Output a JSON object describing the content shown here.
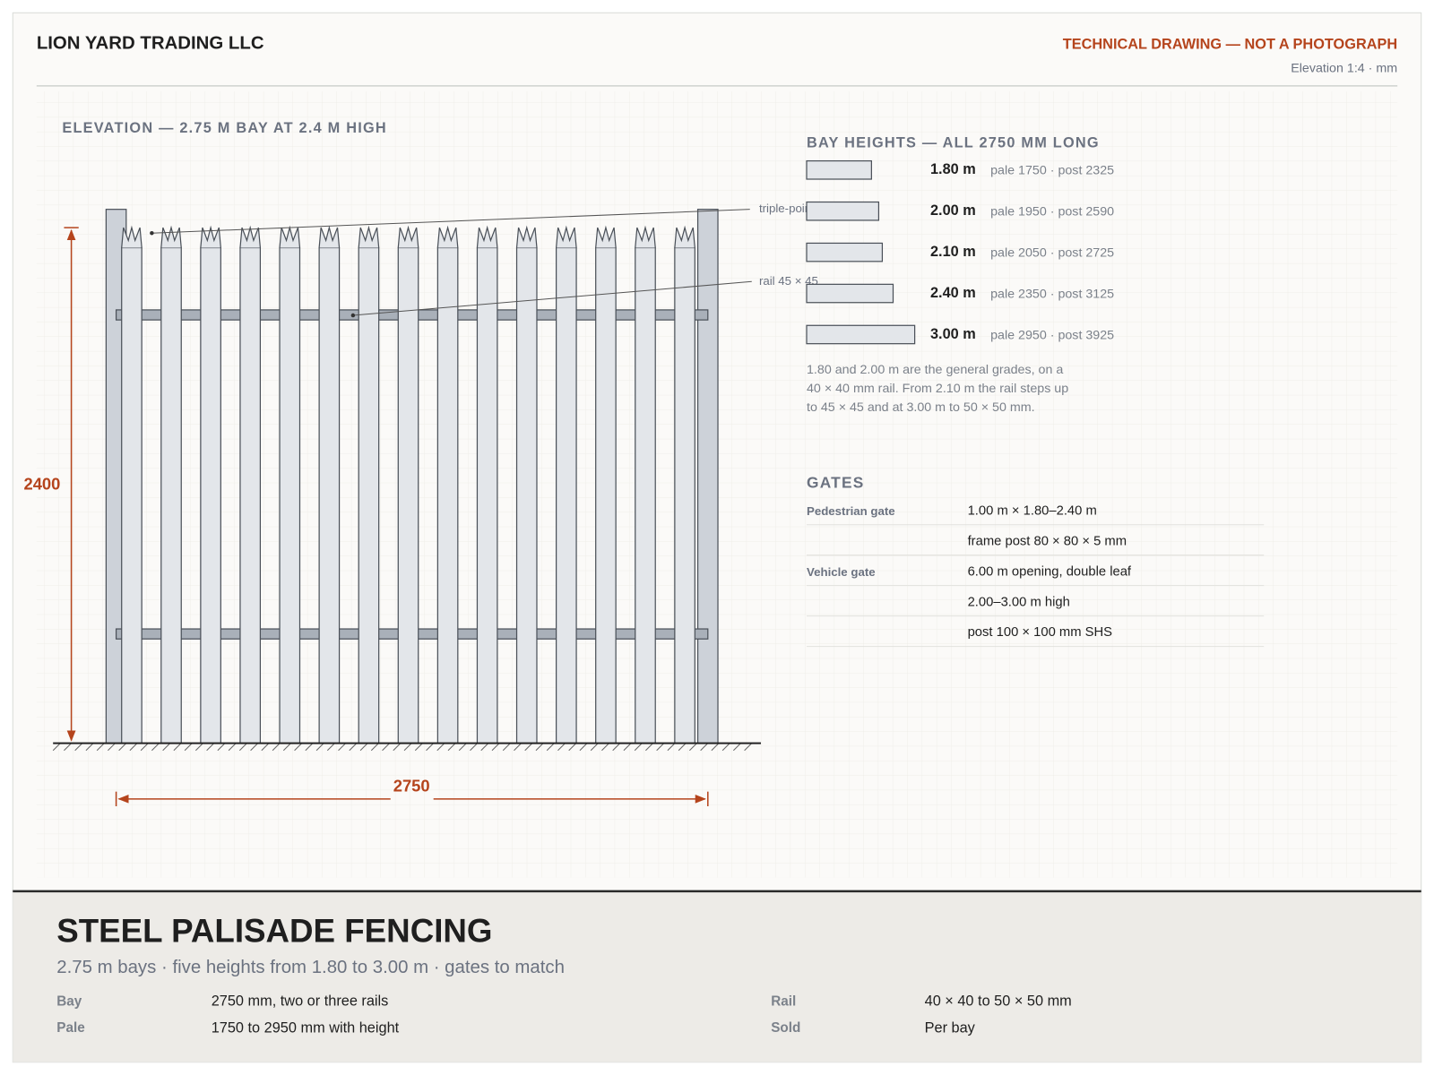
{
  "header": {
    "company": "LION YARD TRADING LLC",
    "notice": "TECHNICAL DRAWING — NOT A PHOTOGRAPH",
    "scale": "Elevation 1:4 · mm"
  },
  "elevation": {
    "title": "ELEVATION — 2.75 M BAY AT 2.4 M HIGH",
    "height_dim": 2400,
    "width_dim": 2750,
    "callouts": [
      "triple-point",
      "rail 45 × 45"
    ]
  },
  "bay_heights": {
    "title": "BAY HEIGHTS — ALL 2750 MM LONG",
    "rows": [
      {
        "height": {
          "value": 1.8,
          "label": "1.80 m"
        },
        "detail": "pale 1750 · post 2325"
      },
      {
        "height": {
          "value": 2.0,
          "label": "2.00 m"
        },
        "detail": "pale 1950 · post 2590"
      },
      {
        "height": {
          "value": 2.1,
          "label": "2.10 m"
        },
        "detail": "pale 2050 · post 2725"
      },
      {
        "height": {
          "value": 2.4,
          "label": "2.40 m"
        },
        "detail": "pale 2350 · post 3125"
      },
      {
        "height": {
          "value": 3.0,
          "label": "3.00 m"
        },
        "detail": "pale 2950 · post 3925"
      }
    ],
    "note": [
      "1.80 and 2.00 m are the general grades, on a",
      "40 × 40 mm rail. From 2.10 m the rail steps up",
      "to 45 × 45 and at 3.00 m to 50 × 50 mm."
    ]
  },
  "gates": {
    "title": "GATES",
    "items": [
      {
        "name": "Pedestrian gate",
        "lines": [
          "1.00 m × 1.80–2.40 m",
          "frame post 80 × 80 × 5 mm"
        ]
      },
      {
        "name": "Vehicle gate",
        "lines": [
          "6.00 m opening, double leaf",
          "2.00–3.00 m high",
          "post 100 × 100 mm SHS"
        ]
      }
    ]
  },
  "footer": {
    "title": "STEEL PALISADE FENCING",
    "subtitle": "2.75 m bays · five heights from 1.80 to 3.00 m · gates to match",
    "specs": [
      {
        "label": "Bay",
        "value": "2750 mm, two or three rails"
      },
      {
        "label": "Pale",
        "value": "1750 to 2950 mm with height"
      },
      {
        "label": "Rail",
        "value": "40 × 40 to 50 × 50 mm"
      },
      {
        "label": "Sold",
        "value": "Per bay"
      }
    ]
  }
}
